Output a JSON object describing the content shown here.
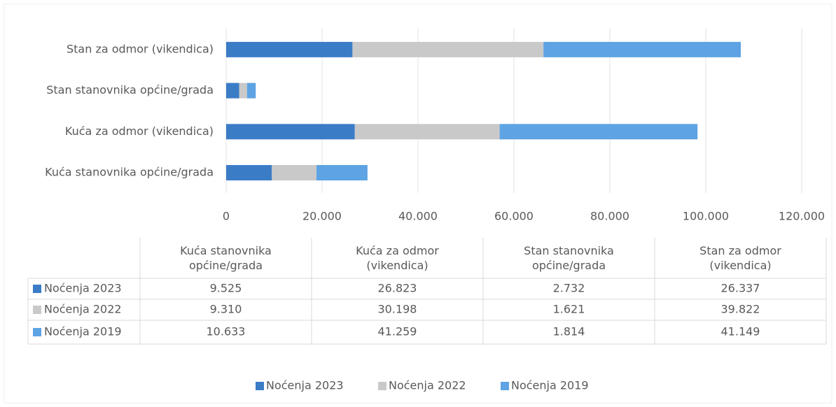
{
  "chart_data": {
    "type": "stacked-bar-horizontal",
    "categories": [
      "Kuća stanovnika općine/grada",
      "Kuća za odmor (vikendica)",
      "Stan stanovnika općine/grada",
      "Stan za odmor (vikendica)"
    ],
    "series": [
      {
        "name": "Noćenja 2023",
        "color": "#3b7cc7",
        "values": [
          9525,
          26823,
          2732,
          26337
        ],
        "value_labels": [
          "9.525",
          "26.823",
          "2.732",
          "26.337"
        ]
      },
      {
        "name": "Noćenja 2022",
        "color": "#c9c9c9",
        "values": [
          9310,
          30198,
          1621,
          39822
        ],
        "value_labels": [
          "9.310",
          "30.198",
          "1.621",
          "39.822"
        ]
      },
      {
        "name": "Noćenja 2019",
        "color": "#5ea3e3",
        "values": [
          10633,
          41259,
          1814,
          41149
        ],
        "value_labels": [
          "10.633",
          "41.259",
          "1.814",
          "41.149"
        ]
      }
    ],
    "xlim": [
      0,
      120000
    ],
    "xticks": [
      0,
      {
        "value": 20000,
        "label": "20.000"
      },
      {
        "value": 40000,
        "label": "40.000"
      },
      {
        "value": 60000,
        "label": "60.000"
      },
      {
        "value": 80000,
        "label": "80.000"
      },
      {
        "value": 100000,
        "label": "100.000"
      },
      {
        "value": 120000,
        "label": "120.000"
      }
    ],
    "grid": true,
    "legend": "bottom"
  }
}
